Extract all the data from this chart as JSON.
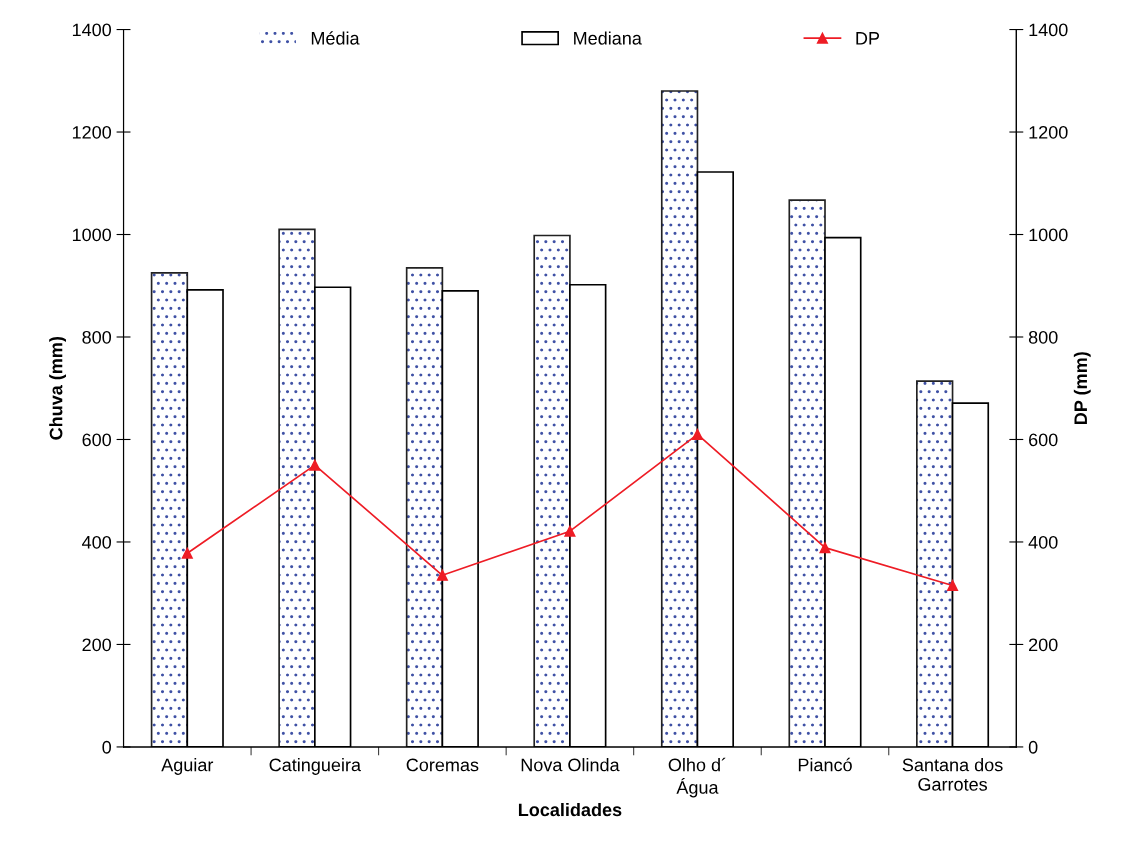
{
  "chart_data": {
    "type": "bar",
    "xlabel": "Localidades",
    "ylabel": "Chuva (mm)",
    "y2label": "DP (mm)",
    "categories": [
      "Aguiar",
      "Catingueira",
      "Coremas",
      "Nova Olinda",
      "Olho d´\nÁgua",
      "Piancó",
      "Santana dos\nGarrotes"
    ],
    "series": [
      {
        "name": "Média",
        "color": "#3f51a5",
        "values": [
          925,
          1010,
          935,
          998,
          1280,
          1067,
          714
        ]
      },
      {
        "name": "Mediana",
        "color": "#ffffff",
        "values": [
          892,
          897,
          890,
          902,
          1122,
          994,
          671
        ]
      },
      {
        "name": "DP",
        "type": "line",
        "axis": "y2",
        "color": "#ee1c25",
        "marker": "triangle",
        "values": [
          378,
          550,
          335,
          421,
          610,
          389,
          315
        ]
      }
    ],
    "ylim": [
      0,
      1400
    ],
    "yticks": [
      0,
      200,
      400,
      600,
      800,
      1000,
      1200,
      1400
    ],
    "y2lim": [
      0,
      1400
    ],
    "y2ticks": [
      0,
      200,
      400,
      600,
      800,
      1000,
      1200,
      1400
    ],
    "legend": "top",
    "grid": false
  }
}
